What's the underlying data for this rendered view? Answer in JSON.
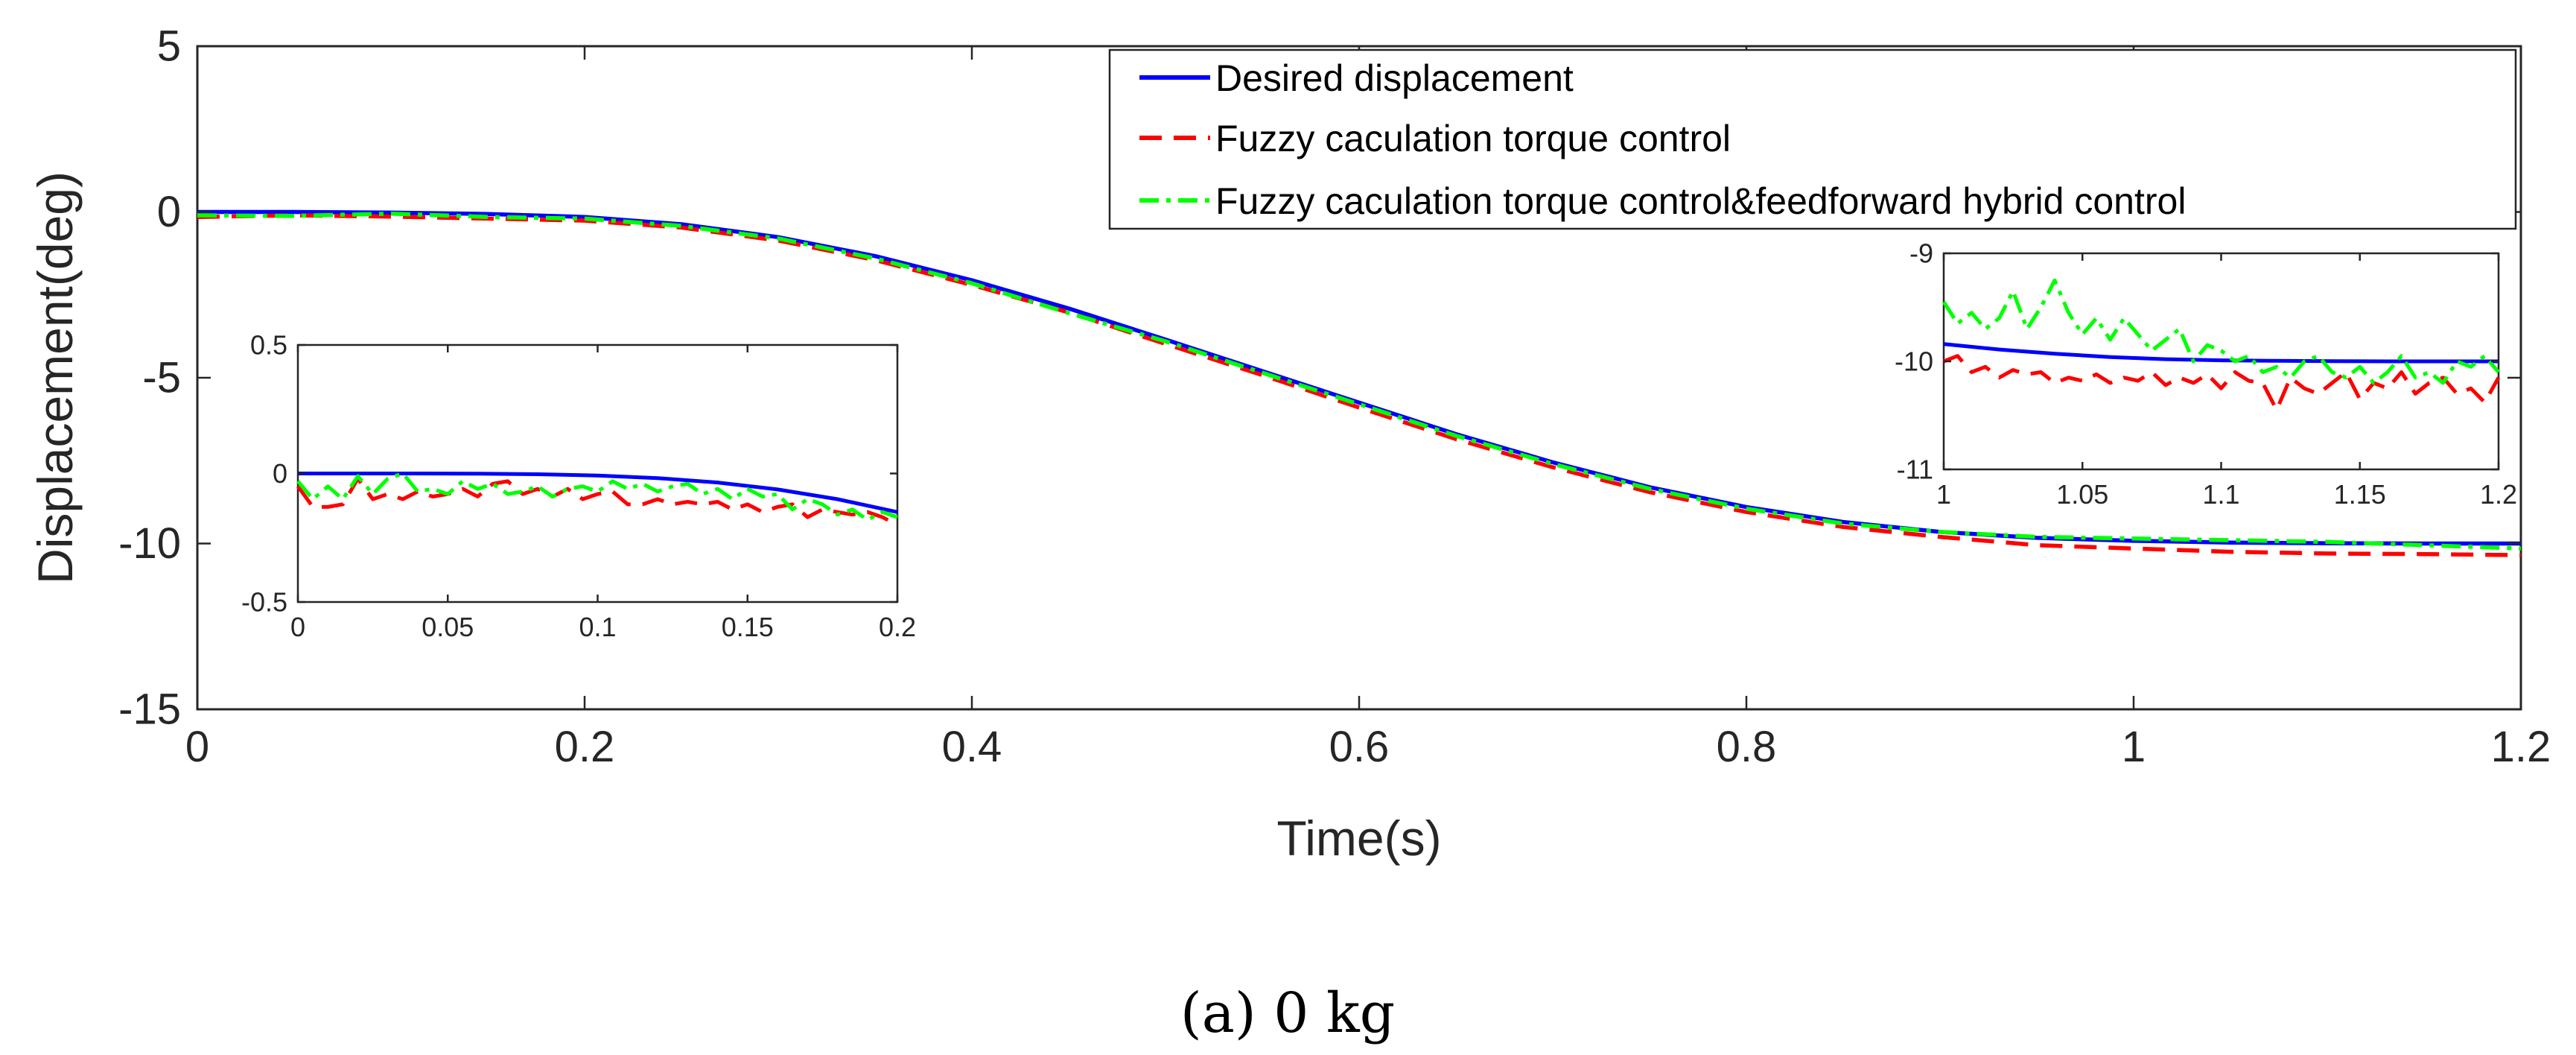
{
  "caption": "(a)  0 kg",
  "chart_data": [
    {
      "id": "main",
      "type": "line",
      "xlabel": "Time(s)",
      "ylabel": "Displacement(deg)",
      "xlim": [
        0,
        1.2
      ],
      "ylim": [
        -15,
        5
      ],
      "xticks": [
        0,
        0.2,
        0.4,
        0.6,
        0.8,
        1,
        1.2
      ],
      "xtick_labels": [
        "0",
        "0.2",
        "0.4",
        "0.6",
        "0.8",
        "1",
        "1.2"
      ],
      "yticks": [
        5,
        0,
        -5,
        -10,
        -15
      ],
      "ytick_labels": [
        "5",
        "0",
        "-5",
        "-10",
        "-15"
      ],
      "grid": false,
      "legend_position": "top-right",
      "series": [
        {
          "name": "Desired displacement",
          "color": "#0000ff",
          "style": "solid",
          "x": [
            0,
            0.05,
            0.1,
            0.15,
            0.2,
            0.25,
            0.3,
            0.35,
            0.4,
            0.45,
            0.5,
            0.55,
            0.6,
            0.65,
            0.7,
            0.75,
            0.8,
            0.85,
            0.9,
            0.95,
            1,
            1.05,
            1.1,
            1.15,
            1.2
          ],
          "y": [
            0,
            0,
            -0.02,
            -0.06,
            -0.15,
            -0.37,
            -0.76,
            -1.33,
            -2.06,
            -2.91,
            -3.85,
            -4.8,
            -5.75,
            -6.7,
            -7.55,
            -8.3,
            -8.9,
            -9.35,
            -9.65,
            -9.83,
            -9.92,
            -9.97,
            -9.99,
            -10,
            -10
          ]
        },
        {
          "name": "Fuzzy caculation torque control",
          "color": "#ff0000",
          "style": "dashed",
          "x": [
            0,
            0.05,
            0.1,
            0.15,
            0.2,
            0.25,
            0.3,
            0.35,
            0.4,
            0.45,
            0.5,
            0.55,
            0.6,
            0.65,
            0.7,
            0.75,
            0.8,
            0.85,
            0.9,
            0.95,
            1,
            1.05,
            1.1,
            1.15,
            1.2
          ],
          "y": [
            -0.15,
            -0.1,
            -0.14,
            -0.2,
            -0.26,
            -0.47,
            -0.86,
            -1.45,
            -2.2,
            -3.03,
            -3.98,
            -4.92,
            -5.9,
            -6.85,
            -7.7,
            -8.45,
            -9.05,
            -9.5,
            -9.8,
            -10.05,
            -10.15,
            -10.25,
            -10.3,
            -10.32,
            -10.35
          ]
        },
        {
          "name": "Fuzzy caculation torque control&feedforward hybrid control",
          "color": "#00ff00",
          "style": "dashdot",
          "x": [
            0,
            0.05,
            0.1,
            0.15,
            0.2,
            0.25,
            0.3,
            0.35,
            0.4,
            0.45,
            0.5,
            0.55,
            0.6,
            0.65,
            0.7,
            0.75,
            0.8,
            0.85,
            0.9,
            0.95,
            1,
            1.05,
            1.1,
            1.15,
            1.2
          ],
          "y": [
            -0.1,
            -0.12,
            -0.05,
            -0.15,
            -0.2,
            -0.42,
            -0.8,
            -1.4,
            -2.15,
            -3.05,
            -3.9,
            -4.85,
            -5.8,
            -6.75,
            -7.6,
            -8.35,
            -8.95,
            -9.4,
            -9.65,
            -9.8,
            -9.85,
            -9.9,
            -9.95,
            -10.05,
            -10.15
          ]
        }
      ]
    },
    {
      "id": "inset-left",
      "type": "line",
      "xlim": [
        0,
        0.2
      ],
      "ylim": [
        -0.5,
        0.5
      ],
      "xticks": [
        0,
        0.05,
        0.1,
        0.15,
        0.2
      ],
      "xtick_labels": [
        "0",
        "0.05",
        "0.1",
        "0.15",
        "0.2"
      ],
      "yticks": [
        0.5,
        0,
        -0.5
      ],
      "ytick_labels": [
        "0.5",
        "0",
        "-0.5"
      ],
      "series": [
        {
          "name": "Desired displacement",
          "color": "#0000ff",
          "style": "solid",
          "x": [
            0,
            0.02,
            0.04,
            0.06,
            0.08,
            0.1,
            0.12,
            0.14,
            0.16,
            0.18,
            0.2
          ],
          "y": [
            0,
            0,
            0,
            -0.001,
            -0.003,
            -0.008,
            -0.018,
            -0.035,
            -0.062,
            -0.1,
            -0.15
          ]
        },
        {
          "name": "Fuzzy caculation torque control",
          "color": "#ff0000",
          "style": "dashed",
          "x": [
            0,
            0.005,
            0.01,
            0.015,
            0.02,
            0.025,
            0.03,
            0.035,
            0.04,
            0.045,
            0.05,
            0.055,
            0.06,
            0.065,
            0.07,
            0.075,
            0.08,
            0.085,
            0.09,
            0.095,
            0.1,
            0.105,
            0.11,
            0.115,
            0.12,
            0.125,
            0.13,
            0.135,
            0.14,
            0.145,
            0.15,
            0.155,
            0.16,
            0.165,
            0.17,
            0.175,
            0.18,
            0.185,
            0.19,
            0.195,
            0.2
          ],
          "y": [
            -0.05,
            -0.13,
            -0.13,
            -0.12,
            -0.02,
            -0.1,
            -0.08,
            -0.1,
            -0.07,
            -0.09,
            -0.08,
            -0.06,
            -0.09,
            -0.04,
            -0.03,
            -0.08,
            -0.06,
            -0.09,
            -0.06,
            -0.1,
            -0.08,
            -0.07,
            -0.12,
            -0.12,
            -0.1,
            -0.12,
            -0.11,
            -0.12,
            -0.11,
            -0.14,
            -0.12,
            -0.15,
            -0.13,
            -0.12,
            -0.17,
            -0.14,
            -0.15,
            -0.16,
            -0.15,
            -0.17,
            -0.2
          ]
        },
        {
          "name": "Fuzzy caculation torque control&feedforward hybrid control",
          "color": "#00ff00",
          "style": "dashdot",
          "x": [
            0,
            0.005,
            0.01,
            0.015,
            0.02,
            0.025,
            0.03,
            0.035,
            0.04,
            0.045,
            0.05,
            0.055,
            0.06,
            0.065,
            0.07,
            0.075,
            0.08,
            0.085,
            0.09,
            0.095,
            0.1,
            0.105,
            0.11,
            0.115,
            0.12,
            0.125,
            0.13,
            0.135,
            0.14,
            0.145,
            0.15,
            0.155,
            0.16,
            0.165,
            0.17,
            0.175,
            0.18,
            0.185,
            0.19,
            0.195,
            0.2
          ],
          "y": [
            -0.03,
            -0.1,
            -0.05,
            -0.1,
            -0.01,
            -0.08,
            -0.02,
            0,
            -0.07,
            -0.06,
            -0.08,
            -0.03,
            -0.06,
            -0.04,
            -0.08,
            -0.07,
            -0.05,
            -0.09,
            -0.06,
            -0.05,
            -0.07,
            -0.03,
            -0.06,
            -0.04,
            -0.07,
            -0.05,
            -0.04,
            -0.08,
            -0.06,
            -0.1,
            -0.06,
            -0.09,
            -0.08,
            -0.14,
            -0.1,
            -0.12,
            -0.16,
            -0.14,
            -0.18,
            -0.15,
            -0.17
          ]
        }
      ]
    },
    {
      "id": "inset-right",
      "type": "line",
      "xlim": [
        1,
        1.2
      ],
      "ylim": [
        -11,
        -9
      ],
      "xticks": [
        1,
        1.05,
        1.1,
        1.15,
        1.2
      ],
      "xtick_labels": [
        "1",
        "1.05",
        "1.1",
        "1.15",
        "1.2"
      ],
      "yticks": [
        -9,
        -10,
        -11
      ],
      "ytick_labels": [
        "-9",
        "-10",
        "-11"
      ],
      "series": [
        {
          "name": "Desired displacement",
          "color": "#0000ff",
          "style": "solid",
          "x": [
            1,
            1.02,
            1.04,
            1.06,
            1.08,
            1.1,
            1.12,
            1.14,
            1.16,
            1.18,
            1.2
          ],
          "y": [
            -9.84,
            -9.89,
            -9.93,
            -9.96,
            -9.98,
            -9.99,
            -9.995,
            -9.998,
            -10,
            -10,
            -10
          ]
        },
        {
          "name": "Fuzzy caculation torque control",
          "color": "#ff0000",
          "style": "dashed",
          "x": [
            1,
            1.005,
            1.01,
            1.015,
            1.02,
            1.025,
            1.03,
            1.035,
            1.04,
            1.045,
            1.05,
            1.055,
            1.06,
            1.065,
            1.07,
            1.075,
            1.08,
            1.085,
            1.09,
            1.095,
            1.1,
            1.105,
            1.11,
            1.115,
            1.12,
            1.125,
            1.13,
            1.135,
            1.14,
            1.145,
            1.15,
            1.155,
            1.16,
            1.165,
            1.17,
            1.175,
            1.18,
            1.185,
            1.19,
            1.195,
            1.2
          ],
          "y": [
            -10,
            -9.95,
            -10.1,
            -10.05,
            -10.15,
            -10.08,
            -10.12,
            -10.1,
            -10.2,
            -10.15,
            -10.18,
            -10.12,
            -10.2,
            -10.15,
            -10.18,
            -10.1,
            -10.22,
            -10.15,
            -10.2,
            -10.12,
            -10.25,
            -10.1,
            -10.18,
            -10.2,
            -10.45,
            -10.15,
            -10.25,
            -10.3,
            -10.2,
            -10.1,
            -10.35,
            -10.2,
            -10.25,
            -10.1,
            -10.3,
            -10.2,
            -10.15,
            -10.3,
            -10.25,
            -10.38,
            -10.15
          ]
        },
        {
          "name": "Fuzzy caculation torque control&feedforward hybrid control",
          "color": "#00ff00",
          "style": "dashdot",
          "x": [
            1,
            1.005,
            1.01,
            1.015,
            1.02,
            1.025,
            1.03,
            1.035,
            1.04,
            1.045,
            1.05,
            1.055,
            1.06,
            1.065,
            1.07,
            1.075,
            1.08,
            1.085,
            1.09,
            1.095,
            1.1,
            1.105,
            1.11,
            1.115,
            1.12,
            1.125,
            1.13,
            1.135,
            1.14,
            1.145,
            1.15,
            1.155,
            1.16,
            1.165,
            1.17,
            1.175,
            1.18,
            1.185,
            1.19,
            1.195,
            1.2
          ],
          "y": [
            -9.45,
            -9.65,
            -9.55,
            -9.7,
            -9.6,
            -9.35,
            -9.7,
            -9.5,
            -9.25,
            -9.55,
            -9.75,
            -9.6,
            -9.8,
            -9.6,
            -9.75,
            -9.9,
            -9.8,
            -9.7,
            -10,
            -9.85,
            -9.9,
            -10,
            -9.95,
            -10.1,
            -10.05,
            -10.15,
            -10,
            -9.95,
            -10.1,
            -10.15,
            -10.05,
            -10.2,
            -10.1,
            -9.95,
            -10.15,
            -10.1,
            -10.2,
            -10,
            -10.05,
            -9.95,
            -10.1
          ]
        }
      ]
    }
  ]
}
